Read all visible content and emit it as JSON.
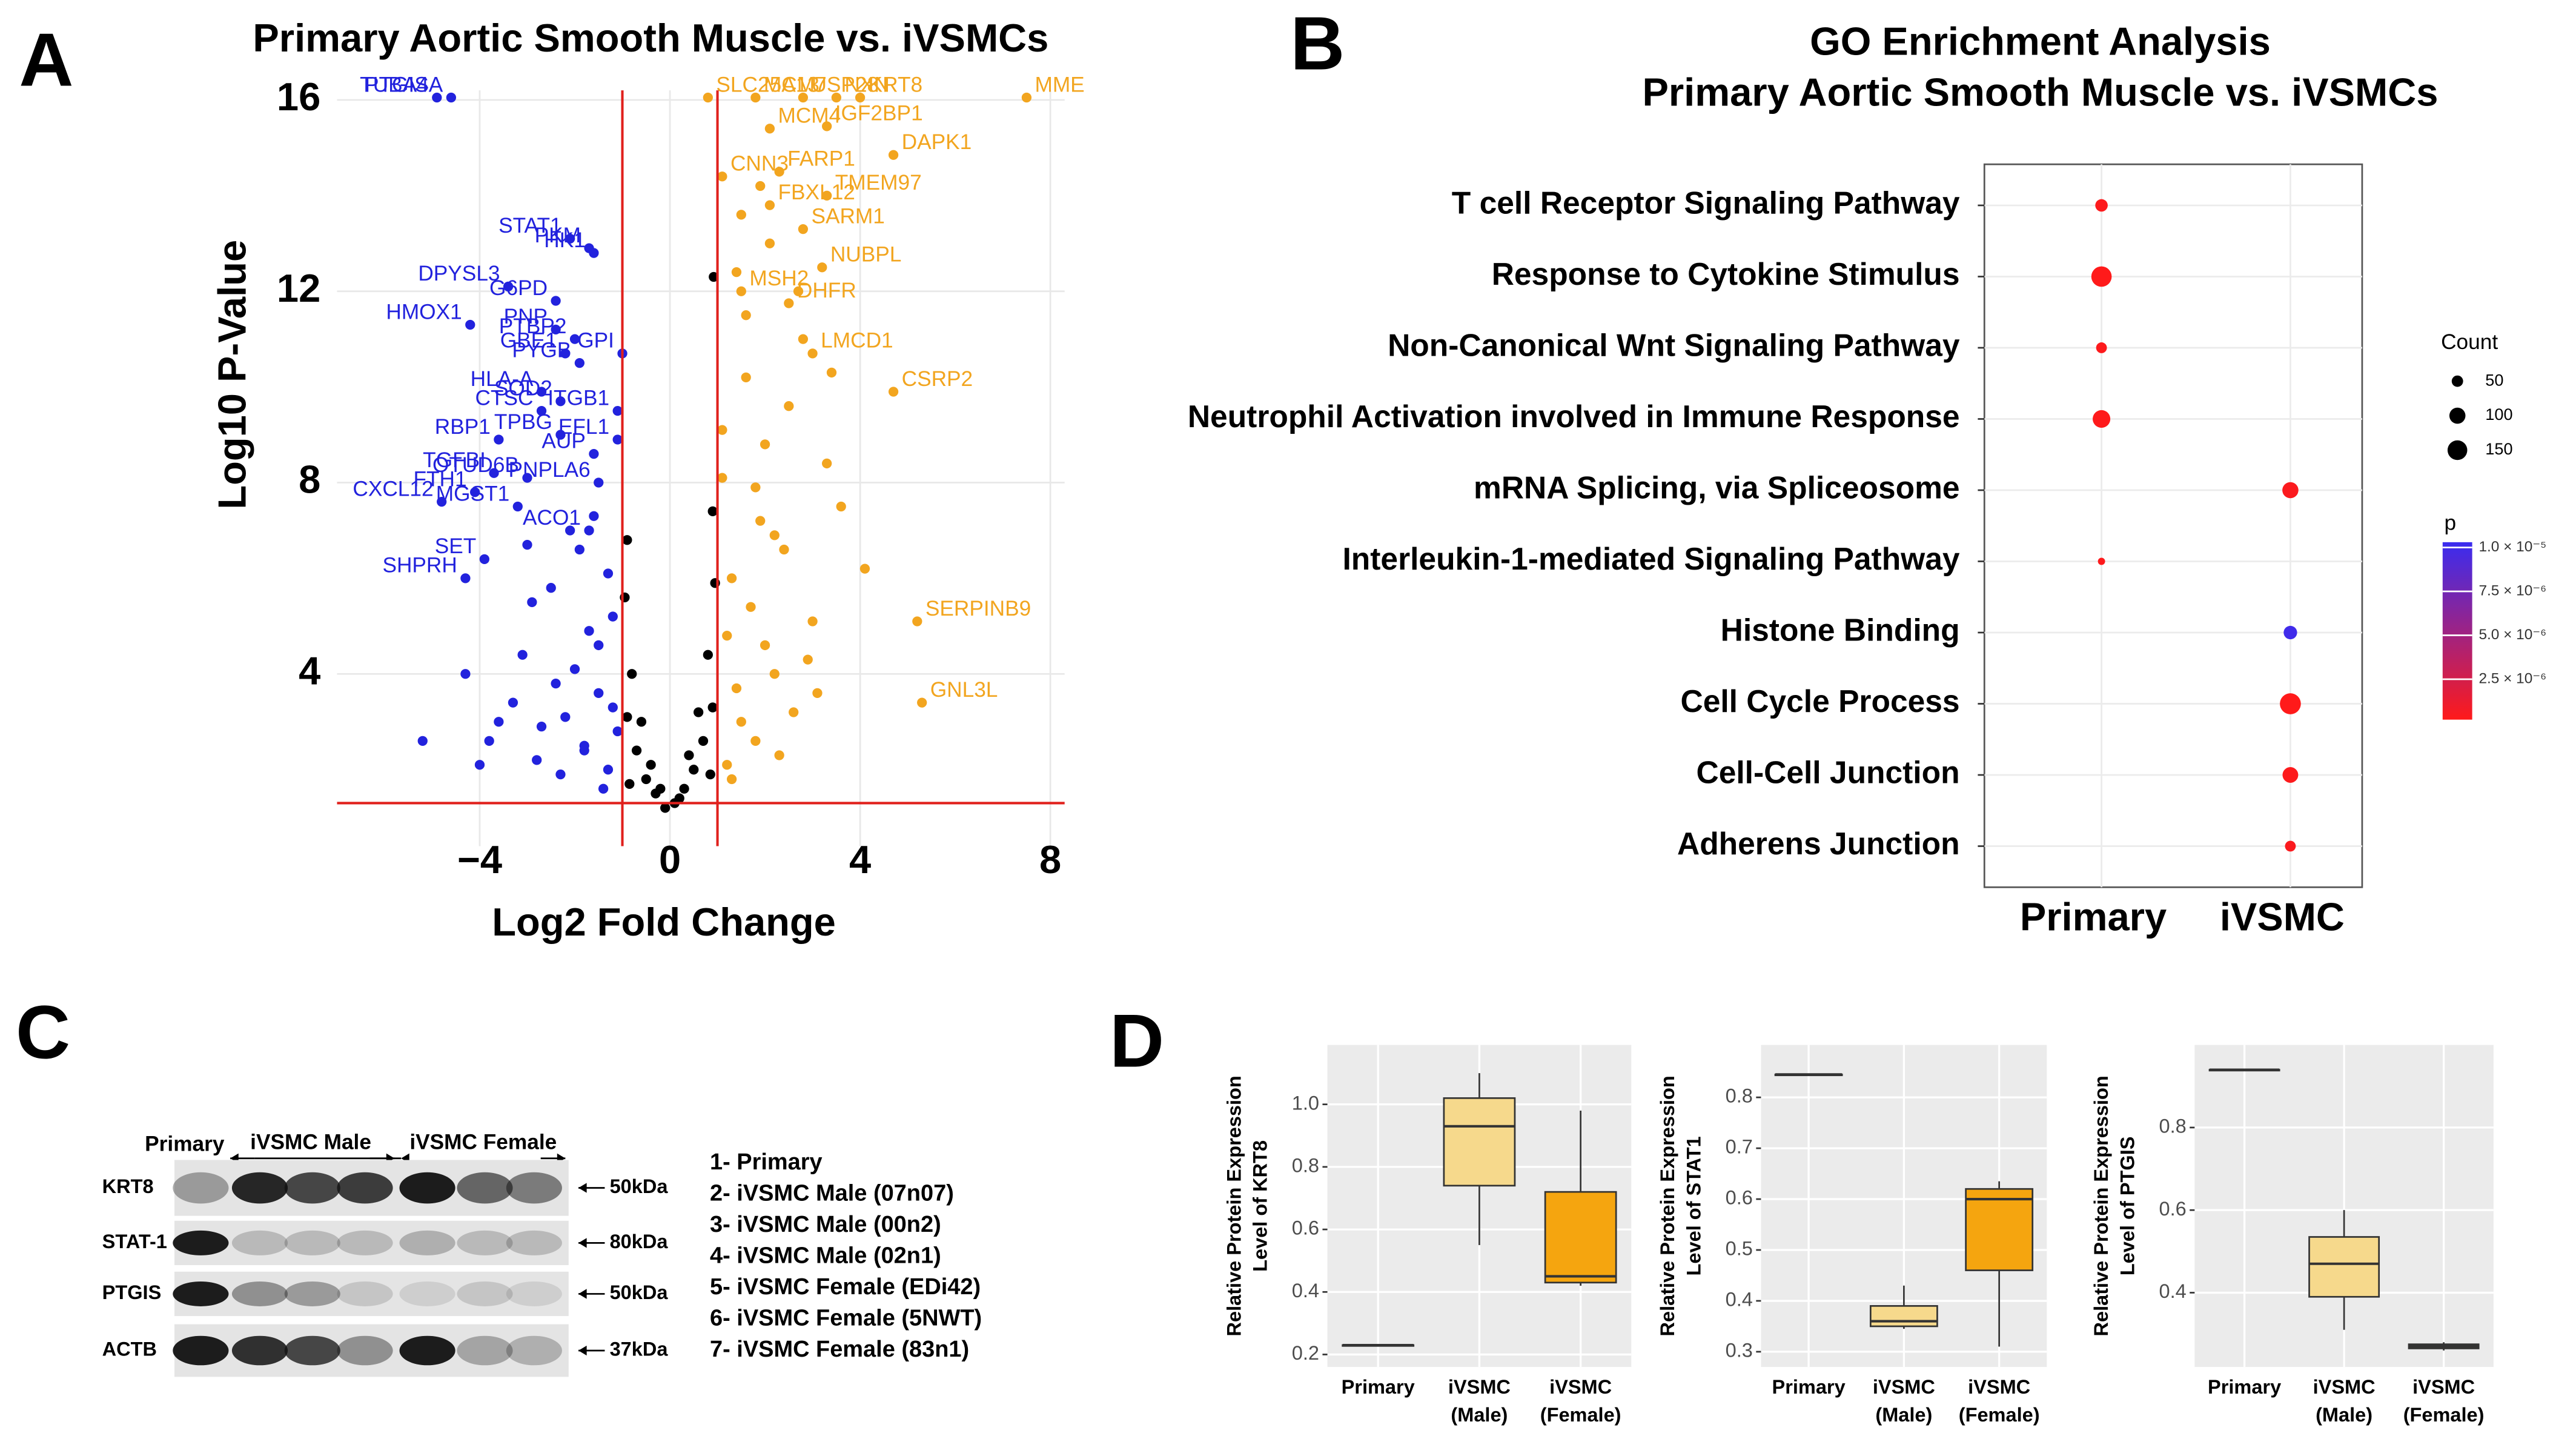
{
  "panels": [
    "A",
    "B",
    "C",
    "D"
  ],
  "chart_data": [
    {
      "type": "scatter",
      "title": "Primary Aortic Smooth Muscle vs. iVSMCs",
      "xlabel": "Log2 Fold Change",
      "ylabel": "Log10 P-Value",
      "xlim": [
        -7,
        8.3
      ],
      "ylim": [
        0.4,
        16.2
      ],
      "xticks": [
        {
          "value": -4,
          "label": "−4"
        },
        0,
        4,
        8
      ],
      "yticks": [
        4,
        8,
        12,
        16
      ],
      "grid": true,
      "threshold_x": [
        -1,
        1
      ],
      "threshold_y": 1.3,
      "threshold_color": "#e0201c",
      "series": [
        {
          "color": "#2222dd",
          "x": [
            -4.9,
            -4.6,
            -2.1,
            -1.7,
            -1.6,
            -3.4,
            -2.4,
            -4.2,
            -2.4,
            -2.0,
            -1.0,
            -2.2,
            -1.9,
            -2.7,
            -2.3,
            -1.1,
            -2.7,
            -3.6,
            -2.3,
            -1.1,
            -1.6,
            -3.7,
            -3.0,
            -4.1,
            -1.5,
            -3.2,
            -4.8,
            -1.7,
            -3.9,
            -4.3,
            -1.3,
            -1.8,
            -2.2,
            -1.5,
            -2.8,
            -3.1,
            -1.2,
            -2.5,
            -3.6,
            -1.9,
            -1.4,
            -2.0,
            -4.3,
            -2.7,
            -3.3,
            -1.6,
            -1.1,
            -2.3,
            -3.8,
            -1.7,
            -2.9,
            -1.3,
            -5.2,
            -2.1,
            -1.5,
            -4.0,
            -3.0,
            -1.2,
            -2.4,
            -1.8
          ],
          "values": [
            16.05,
            16.05,
            13.1,
            12.9,
            12.8,
            12.1,
            11.8,
            11.3,
            11.2,
            11.0,
            10.7,
            10.7,
            10.5,
            9.9,
            9.7,
            9.5,
            9.5,
            8.9,
            9.0,
            8.9,
            8.6,
            8.2,
            8.1,
            7.8,
            8.0,
            7.5,
            7.6,
            7.0,
            6.4,
            6.0,
            2.0,
            2.5,
            3.1,
            3.6,
            2.2,
            4.4,
            5.2,
            5.8,
            3.0,
            6.6,
            1.6,
            4.1,
            4.0,
            2.9,
            3.4,
            7.3,
            2.8,
            1.9,
            2.6,
            4.9,
            5.5,
            6.1,
            2.6,
            7.0,
            4.6,
            2.1,
            6.7,
            3.3,
            3.8,
            2.4
          ],
          "labels": [
            "PTGIS",
            "TUBA4A",
            "STAT1",
            "PKM",
            "HK1",
            "DPYSL3",
            "G6PD",
            "HMOX1",
            "PNP",
            "PTBP2",
            "GPI",
            "GBE1",
            "PYGB",
            "HLA-A",
            "SOD2",
            "ITGB1",
            "CTSC",
            "RBP1",
            "TPBG",
            "EFL1",
            "AUP",
            "TGFBI",
            "OTUD6B",
            "FTH1",
            "PNPLA6",
            "MGST1",
            "CXCL12",
            "ACO1",
            "SET",
            "SHPRH",
            null,
            null,
            null,
            null,
            null,
            null,
            null,
            null,
            null,
            null,
            null,
            null,
            null,
            null,
            null,
            null,
            null,
            null,
            null,
            null,
            null,
            null,
            null,
            null,
            null,
            null,
            null,
            null,
            null,
            null
          ]
        },
        {
          "color": "#000000",
          "x": [
            -0.9,
            -0.7,
            -0.5,
            -0.3,
            -0.1,
            0.1,
            0.3,
            0.5,
            0.7,
            0.9,
            -0.8,
            -0.6,
            0.6,
            0.8,
            -0.95,
            0.95,
            -0.9,
            0.9,
            -0.4,
            0.4,
            -0.85,
            0.85,
            -0.2,
            0.2,
            0.92
          ],
          "values": [
            3.1,
            2.4,
            1.8,
            1.5,
            1.2,
            1.3,
            1.6,
            2.0,
            2.6,
            3.3,
            4.0,
            3.0,
            3.2,
            4.4,
            5.6,
            5.9,
            6.8,
            7.4,
            2.1,
            2.3,
            1.7,
            1.9,
            1.6,
            1.4,
            12.3
          ],
          "labels": [
            null,
            null,
            null,
            null,
            null,
            null,
            null,
            null,
            null,
            null,
            null,
            null,
            null,
            null,
            null,
            null,
            null,
            null,
            null,
            null,
            null,
            null,
            null,
            null,
            null
          ]
        },
        {
          "color": "#f2a51f",
          "x": [
            0.8,
            1.8,
            2.8,
            3.5,
            4.0,
            7.5,
            2.1,
            3.3,
            4.7,
            1.1,
            2.3,
            3.3,
            2.1,
            2.8,
            3.2,
            1.5,
            2.5,
            3.0,
            4.7,
            5.2,
            5.3,
            1.2,
            1.5,
            1.8,
            2.2,
            2.6,
            3.0,
            1.3,
            1.9,
            2.4,
            3.3,
            1.1,
            1.6,
            2.0,
            2.8,
            3.6,
            1.4,
            2.1,
            2.5,
            1.2,
            1.7,
            3.1,
            2.3,
            1.5,
            4.1,
            1.9,
            2.7,
            1.3,
            2.0,
            1.6,
            3.4,
            1.8,
            1.1,
            2.2,
            2.9,
            1.4
          ],
          "values": [
            16.05,
            16.05,
            16.05,
            16.05,
            16.05,
            16.05,
            15.4,
            15.45,
            14.85,
            14.4,
            14.5,
            14.0,
            13.8,
            13.3,
            12.5,
            12.0,
            11.75,
            10.7,
            9.9,
            5.1,
            3.4,
            2.1,
            3.0,
            2.6,
            4.0,
            3.2,
            5.1,
            6.0,
            7.2,
            6.6,
            8.4,
            9.1,
            10.2,
            8.8,
            11.0,
            7.5,
            12.4,
            13.0,
            9.6,
            4.8,
            5.4,
            3.6,
            2.3,
            13.6,
            6.2,
            14.2,
            12.0,
            1.8,
            4.6,
            11.5,
            10.3,
            7.9,
            8.1,
            6.9,
            4.3,
            3.7
          ],
          "labels": [
            "SLC25A13",
            "MCM7",
            "USP28",
            "NXN",
            "KRT8",
            "MME",
            "MCM4",
            "IGF2BP1",
            "DAPK1",
            "CNN3",
            "FARP1",
            "TMEM97",
            "FBXL12",
            "SARM1",
            "NUBPL",
            "MSH2",
            "DHFR",
            "LMCD1",
            "CSRP2",
            "SERPINB9",
            "GNL3L",
            null,
            null,
            null,
            null,
            null,
            null,
            null,
            null,
            null,
            null,
            null,
            null,
            null,
            null,
            null,
            null,
            null,
            null,
            null,
            null,
            null,
            null,
            null,
            null,
            null,
            null,
            null,
            null,
            null,
            null,
            null,
            null,
            null,
            null,
            null
          ]
        }
      ]
    },
    {
      "type": "dot",
      "title": [
        "GO Enrichment Analysis",
        "Primary Aortic Smooth Muscle vs. iVSMCs"
      ],
      "categories": [
        "T cell Receptor Signaling Pathway",
        "Response to Cytokine Stimulus",
        "Non-Canonical Wnt Signaling Pathway",
        "Neutrophil Activation involved in Immune Response",
        "mRNA Splicing, via Spliceosome",
        "Interleukin-1-mediated Signaling Pathway",
        "Histone Binding",
        "Cell Cycle Process",
        "Cell-Cell Junction",
        "Adherens Junction"
      ],
      "groups": [
        "Primary",
        "iVSMC"
      ],
      "group": [
        "Primary",
        "Primary",
        "Primary",
        "Primary",
        "iVSMC",
        "Primary",
        "iVSMC",
        "iVSMC",
        "iVSMC",
        "iVSMC"
      ],
      "count": [
        60,
        160,
        45,
        120,
        100,
        20,
        70,
        170,
        95,
        45
      ],
      "p": [
        3e-07,
        2e-07,
        3e-07,
        2.5e-07,
        4e-07,
        3e-07,
        1e-05,
        2e-07,
        3e-07,
        4e-07
      ],
      "size_title": "Count",
      "size_ticks": [
        50,
        100,
        150
      ],
      "color_title": "p",
      "plim": [
        2e-07,
        1.03e-05
      ],
      "p_ticks": [
        {
          "value": 1e-05,
          "label": "1.0 × 10⁻⁵"
        },
        {
          "value": 7.5e-06,
          "label": "7.5 × 10⁻⁶"
        },
        {
          "value": 5e-06,
          "label": "5.0 × 10⁻⁶"
        },
        {
          "value": 2.5e-06,
          "label": "2.5 × 10⁻⁶"
        }
      ],
      "low_color": "#ff1a1a",
      "high_color": "#3a2cf0",
      "grid": true
    },
    {
      "type": "box",
      "ylabel": [
        "Relative Protein Expression",
        "Level of KRT8"
      ],
      "categories": [
        [
          "Primary"
        ],
        [
          "iVSMC",
          "(Male)"
        ],
        [
          "iVSMC",
          "(Female)"
        ]
      ],
      "colors": [
        null,
        "#f6d98c",
        "#f5a50f"
      ],
      "min": [
        0.23,
        0.55,
        0.42
      ],
      "q1": [
        0.23,
        0.74,
        0.43
      ],
      "median": [
        0.23,
        0.93,
        0.45
      ],
      "q3": [
        0.23,
        1.02,
        0.72
      ],
      "max": [
        0.23,
        1.1,
        0.98
      ],
      "ylim": [
        0.16,
        1.19
      ],
      "yticks": [
        0.2,
        0.4,
        0.6,
        0.8,
        {
          "value": 1,
          "label": "1.0"
        }
      ],
      "grid": true
    },
    {
      "type": "box",
      "ylabel": [
        "Relative Protein Expression",
        "Level of STAT1"
      ],
      "categories": [
        [
          "Primary"
        ],
        [
          "iVSMC",
          "(Male)"
        ],
        [
          "iVSMC",
          "(Female)"
        ]
      ],
      "colors": [
        null,
        "#f6d98c",
        "#f5a50f"
      ],
      "min": [
        0.845,
        0.345,
        0.31
      ],
      "q1": [
        0.845,
        0.35,
        0.46
      ],
      "median": [
        0.845,
        0.36,
        0.6
      ],
      "q3": [
        0.845,
        0.39,
        0.62
      ],
      "max": [
        0.845,
        0.43,
        0.635
      ],
      "ylim": [
        0.27,
        0.903
      ],
      "yticks": [
        0.3,
        0.4,
        0.5,
        0.6,
        0.7,
        0.8
      ],
      "grid": true
    },
    {
      "type": "box",
      "ylabel": [
        "Relative Protein Expression",
        "Level of PTGIS"
      ],
      "categories": [
        [
          "Primary"
        ],
        [
          "iVSMC",
          "(Male)"
        ],
        [
          "iVSMC",
          "(Female)"
        ]
      ],
      "colors": [
        null,
        "#f6d98c",
        "#8f6a34"
      ],
      "min": [
        0.94,
        0.31,
        0.26
      ],
      "q1": [
        0.94,
        0.39,
        0.265
      ],
      "median": [
        0.94,
        0.47,
        0.27
      ],
      "q3": [
        0.94,
        0.535,
        0.275
      ],
      "max": [
        0.94,
        0.6,
        0.28
      ],
      "ylim": [
        0.22,
        1.0
      ],
      "yticks": [
        0.4,
        0.6,
        0.8
      ],
      "grid": true
    }
  ],
  "blot": {
    "lanes": [
      "Primary",
      "iVSMC Male",
      "iVSMC Female"
    ],
    "rows": [
      {
        "protein": "KRT8",
        "size": "50kDa"
      },
      {
        "protein": "STAT-1",
        "size": "80kDa"
      },
      {
        "protein": "PTGIS",
        "size": "50kDa"
      },
      {
        "protein": "ACTB",
        "size": "37kDa"
      }
    ],
    "key": [
      "1- Primary",
      "2- iVSMC Male (07n07)",
      "3- iVSMC Male (00n2)",
      "4- iVSMC Male (02n1)",
      "5- iVSMC Female (EDi42)",
      "6- iVSMC Female (5NWT)",
      "7- iVSMC Female (83n1)"
    ]
  }
}
